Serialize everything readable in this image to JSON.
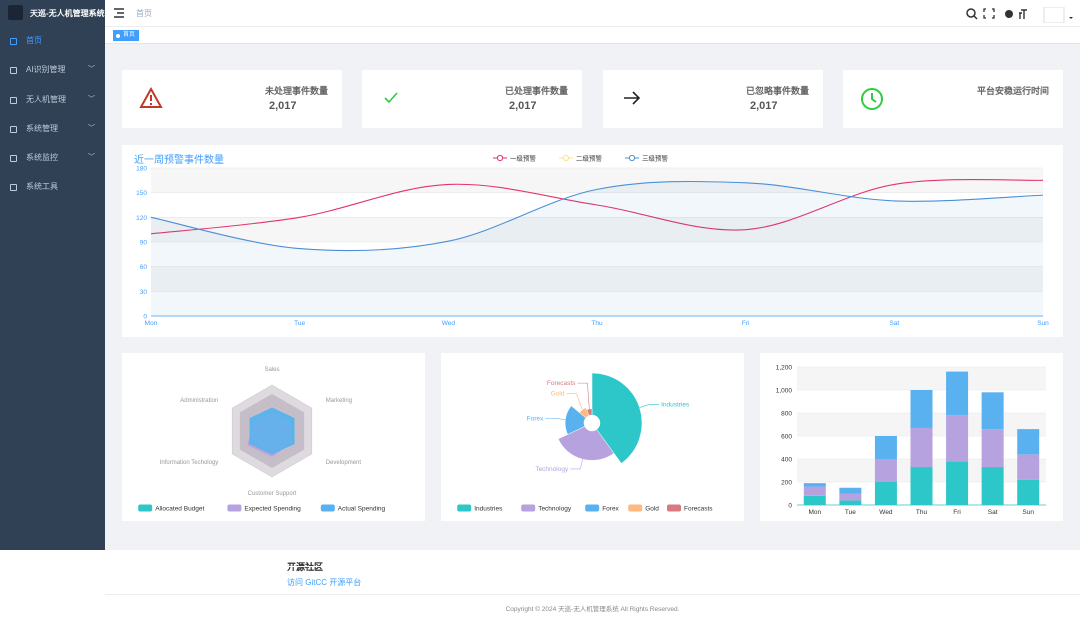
{
  "sidebar": {
    "title": "天巡-无人机管理系统",
    "menu": [
      "首页",
      "AI识别管理",
      "无人机管理",
      "系统管理",
      "系统监控",
      "系统工具"
    ]
  },
  "header": {
    "breadcrumb": "首页",
    "tag": "首页"
  },
  "cards": [
    {
      "label": "未处理事件数量",
      "value": "2,017"
    },
    {
      "label": "已处理事件数量",
      "value": "2,017"
    },
    {
      "label": "已忽略事件数量",
      "value": "2,017"
    },
    {
      "label": "平台安稳运行时间"
    }
  ],
  "chart_data": [
    {
      "type": "line",
      "title": "近一周预警事件数量",
      "categories": [
        "Mon",
        "Tue",
        "Wed",
        "Thu",
        "Fri",
        "Sat",
        "Sun"
      ],
      "ylim": [
        0,
        180
      ],
      "yticks": [
        0,
        30,
        60,
        90,
        120,
        150,
        180
      ],
      "grid": true,
      "series": [
        {
          "name": "一级预警",
          "color": "#e5326b",
          "values": [
            100,
            120,
            160,
            135,
            105,
            160,
            165
          ]
        },
        {
          "name": "二级预警",
          "color": "#fce38a",
          "values": [
            null,
            null,
            null,
            null,
            null,
            null,
            null
          ]
        },
        {
          "name": "三级预警",
          "color": "#4a8fd6",
          "area": true,
          "values": [
            120,
            82,
            91,
            154,
            162,
            140,
            147
          ]
        }
      ]
    },
    {
      "type": "radar",
      "indicators": [
        "Sales",
        "Marketing",
        "Development",
        "Customer Support",
        "Information Techology",
        "Administration"
      ],
      "rlim": [
        0,
        100
      ],
      "legend": "bottom",
      "series": [
        {
          "name": "Allocated Budget",
          "color": "#2ec7c9",
          "values": [
            45,
            55,
            55,
            45,
            55,
            50
          ]
        },
        {
          "name": "Expected Spending",
          "color": "#b6a2de",
          "values": [
            40,
            45,
            50,
            55,
            60,
            45
          ]
        },
        {
          "name": "Actual Spending",
          "color": "#5ab1ef",
          "values": [
            50,
            55,
            55,
            50,
            55,
            55
          ]
        }
      ]
    },
    {
      "type": "pie",
      "rose": true,
      "legend": "bottom",
      "categories": [
        "Industries",
        "Technology",
        "Forex",
        "Gold",
        "Forecasts"
      ],
      "values": [
        40,
        28,
        18,
        8,
        6
      ],
      "colors": [
        "#2ec7c9",
        "#b6a2de",
        "#5ab1ef",
        "#ffb980",
        "#d87a80"
      ]
    },
    {
      "type": "bar",
      "stacked": true,
      "grid": true,
      "categories": [
        "Mon",
        "Tue",
        "Wed",
        "Thu",
        "Fri",
        "Sat",
        "Sun"
      ],
      "ylim": [
        0,
        1200
      ],
      "yticks": [
        0,
        200,
        400,
        600,
        800,
        {
          "value": 1000,
          "label": "1,000"
        },
        {
          "value": 1200,
          "label": "1,200"
        }
      ],
      "series": [
        {
          "color": "#2ec7c9",
          "values": [
            80,
            40,
            200,
            330,
            380,
            330,
            220
          ]
        },
        {
          "color": "#b6a2de",
          "values": [
            80,
            60,
            200,
            340,
            400,
            330,
            220
          ]
        },
        {
          "color": "#5ab1ef",
          "values": [
            30,
            50,
            200,
            330,
            380,
            320,
            220
          ]
        }
      ]
    }
  ],
  "footer": {
    "heading": "开源社区",
    "link": "访问 GitCC 开源平台",
    "copyright": "Copyright © 2024 天巡-无人机管理系统 All Rights Reserved."
  }
}
